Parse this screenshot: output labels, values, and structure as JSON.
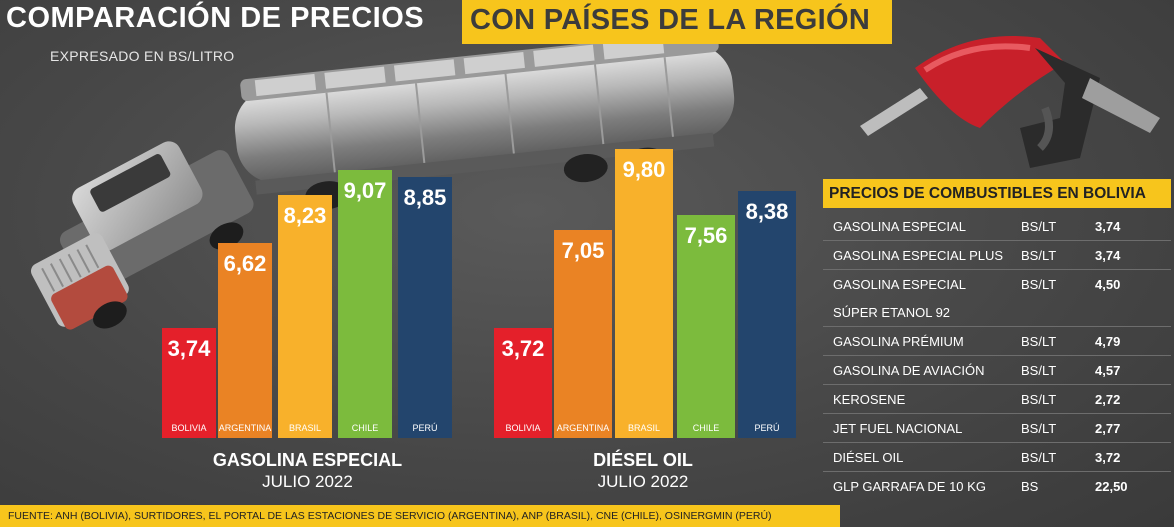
{
  "header": {
    "title_left": "COMPARACIÓN DE PRECIOS",
    "title_right": "CON PAÍSES DE LA REGIÓN",
    "subtitle": "EXPRESADO EN BS/LITRO"
  },
  "colors": {
    "yellow": "#f7c51c",
    "bolivia": "#e4202a",
    "argentina": "#ea8324",
    "brasil": "#f8b12b",
    "chile": "#7cbb3d",
    "peru": "#23456d"
  },
  "chart_data": [
    {
      "type": "bar",
      "title": "GASOLINA ESPECIAL",
      "subtitle": "JULIO 2022",
      "categories": [
        "BOLIVIA",
        "ARGENTINA",
        "BRASIL",
        "CHILE",
        "PERÚ"
      ],
      "values": [
        3.74,
        6.62,
        8.23,
        9.07,
        8.85
      ],
      "value_labels": [
        "3,74",
        "6,62",
        "8,23",
        "9,07",
        "8,85"
      ],
      "ylim": [
        0,
        10
      ]
    },
    {
      "type": "bar",
      "title": "DIÉSEL OIL",
      "subtitle": "JULIO 2022",
      "categories": [
        "BOLIVIA",
        "ARGENTINA",
        "BRASIL",
        "CHILE",
        "PERÚ"
      ],
      "values": [
        3.72,
        7.05,
        9.8,
        7.56,
        8.38
      ],
      "value_labels": [
        "3,72",
        "7,05",
        "9,80",
        "7,56",
        "8,38"
      ],
      "ylim": [
        0,
        10
      ]
    }
  ],
  "table": {
    "title": "PRECIOS DE COMBUSTIBLES EN BOLIVIA",
    "rows": [
      {
        "name": "GASOLINA ESPECIAL",
        "unit": "BS/LT",
        "value": "3,74"
      },
      {
        "name": "GASOLINA ESPECIAL PLUS",
        "unit": "BS/LT",
        "value": "3,74"
      },
      {
        "name": "GASOLINA ESPECIAL",
        "unit": "BS/LT",
        "value": "4,50"
      },
      {
        "name": "SÚPER ETANOL 92",
        "unit": "",
        "value": ""
      },
      {
        "name": "GASOLINA PRÉMIUM",
        "unit": "BS/LT",
        "value": "4,79"
      },
      {
        "name": "GASOLINA DE AVIACIÓN",
        "unit": "BS/LT",
        "value": "4,57"
      },
      {
        "name": "KEROSENE",
        "unit": "BS/LT",
        "value": "2,72"
      },
      {
        "name": "JET FUEL NACIONAL",
        "unit": "BS/LT",
        "value": "2,77"
      },
      {
        "name": "DIÉSEL OIL",
        "unit": "BS/LT",
        "value": "3,72"
      },
      {
        "name": "GLP GARRAFA DE 10 KG",
        "unit": "BS",
        "value": "22,50"
      }
    ]
  },
  "source": "FUENTE: ANH (BOLIVIA), SURTIDORES, EL PORTAL DE LAS ESTACIONES DE SERVICIO (ARGENTINA), ANP (BRASIL), CNE (CHILE), OSINERGMIN (PERÚ)"
}
